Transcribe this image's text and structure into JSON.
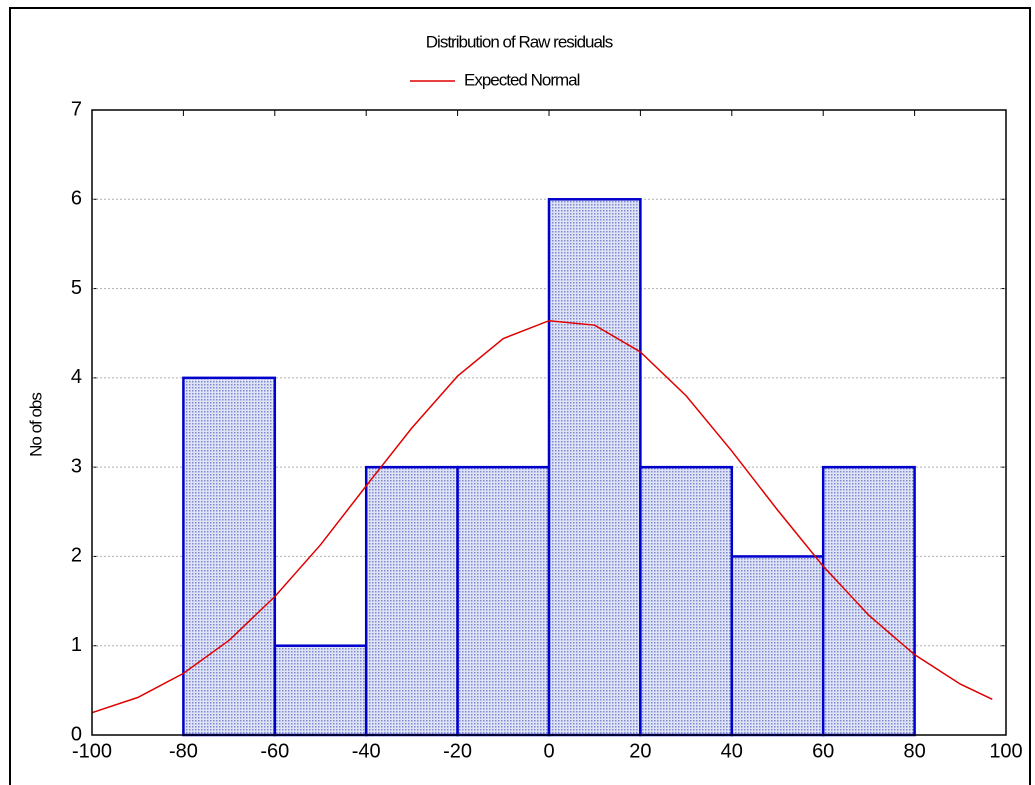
{
  "chart_data": {
    "type": "histogram",
    "title": "Distribution of Raw residuals",
    "y_label": "No of obs",
    "bins": [
      -80,
      -60,
      -40,
      -20,
      0,
      20,
      40,
      60,
      80
    ],
    "values": [
      4,
      1,
      3,
      3,
      6,
      3,
      2,
      3
    ],
    "color": "#0000cc",
    "fill": "#b4bce6",
    "curve": {
      "name": "Expected Normal",
      "color": "#e00000",
      "x": [
        -100,
        -90,
        -80,
        -70,
        -60,
        -50,
        -40,
        -30,
        -20,
        -10,
        0,
        10,
        20,
        30,
        40,
        50,
        60,
        70,
        80,
        90,
        97
      ],
      "values": [
        0.25,
        0.42,
        0.69,
        1.06,
        1.55,
        2.13,
        2.79,
        3.44,
        4.02,
        4.44,
        4.64,
        4.59,
        4.29,
        3.8,
        3.18,
        2.52,
        1.89,
        1.34,
        0.9,
        0.57,
        0.4
      ]
    },
    "xlim": [
      -100,
      100
    ],
    "xticks": [
      -100,
      -80,
      -60,
      -40,
      -20,
      0,
      20,
      40,
      60,
      80,
      100
    ],
    "ylim": [
      0,
      7
    ],
    "yticks": [
      0,
      1,
      2,
      3,
      4,
      5,
      6,
      7
    ],
    "grid": true,
    "legend": "top"
  }
}
